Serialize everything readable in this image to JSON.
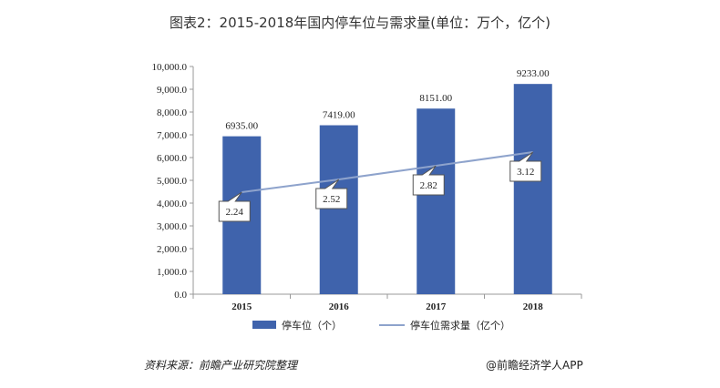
{
  "title": "图表2：2015-2018年国内停车位与需求量(单位：万个，亿个)",
  "source": "资料来源：前瞻产业研究院整理",
  "brand": "@前瞻经济学人APP",
  "colors": {
    "bar": "#3F63AC",
    "line": "#8EA3CC",
    "axis": "#999999",
    "text": "#222222"
  },
  "chart_data": {
    "type": "bar",
    "categories": [
      "2015",
      "2016",
      "2017",
      "2018"
    ],
    "series": [
      {
        "name": "停车位（个）",
        "type": "bar",
        "axis": "left",
        "values": [
          6935.0,
          7419.0,
          8151.0,
          9233.0
        ],
        "labels": [
          "6935.00",
          "7419.00",
          "8151.00",
          "9233.00"
        ]
      },
      {
        "name": "停车位需求量（亿个）",
        "type": "line",
        "axis": "right",
        "values": [
          2.24,
          2.52,
          2.82,
          3.12
        ],
        "labels": [
          "2.24",
          "2.52",
          "2.82",
          "3.12"
        ]
      }
    ],
    "ylim": [
      0,
      10000
    ],
    "yticks": [
      "0.0",
      "1,000.0",
      "2,000.0",
      "3,000.0",
      "4,000.0",
      "5,000.0",
      "6,000.0",
      "7,000.0",
      "8,000.0",
      "9,000.0",
      "10,000.0"
    ],
    "legend": "bottom"
  }
}
